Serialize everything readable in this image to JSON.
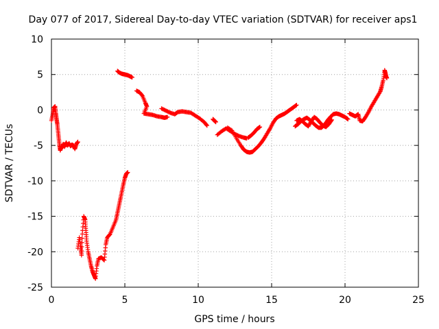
{
  "chart_data": {
    "type": "scatter",
    "title": "Day 077 of 2017, Sidereal Day-to-day VTEC variation (SDTVAR) for receiver aps1",
    "xlabel": "GPS time / hours",
    "ylabel": "SDTVAR / TECUs",
    "xlim": [
      0,
      25
    ],
    "ylim": [
      -25,
      10
    ],
    "xticks": [
      0,
      5,
      10,
      15,
      20,
      25
    ],
    "xtick_labels": [
      "0",
      "5",
      "10",
      "15",
      "20",
      "25"
    ],
    "yticks": [
      -25,
      -20,
      -15,
      -10,
      -5,
      0,
      5,
      10
    ],
    "ytick_labels": [
      "-25",
      "-20",
      "-15",
      "-10",
      "-5",
      "0",
      "5",
      "10"
    ],
    "grid": true,
    "marker": "+",
    "color": "#ff0000",
    "segments": [
      {
        "name": "early-drop",
        "points": [
          [
            0.0,
            -1.5
          ],
          [
            0.1,
            -0.5
          ],
          [
            0.15,
            0.3
          ],
          [
            0.25,
            0.5
          ],
          [
            0.3,
            -0.5
          ],
          [
            0.35,
            -1.3
          ],
          [
            0.4,
            -2.0
          ],
          [
            0.45,
            -3.0
          ],
          [
            0.5,
            -4.0
          ],
          [
            0.55,
            -5.0
          ],
          [
            0.6,
            -5.7
          ]
        ]
      },
      {
        "name": "early-flat",
        "points": [
          [
            0.6,
            -5.6
          ],
          [
            0.7,
            -5.3
          ],
          [
            0.8,
            -4.8
          ],
          [
            0.9,
            -5.2
          ],
          [
            1.0,
            -4.6
          ],
          [
            1.1,
            -5.0
          ],
          [
            1.2,
            -4.7
          ],
          [
            1.3,
            -5.1
          ],
          [
            1.4,
            -4.9
          ],
          [
            1.5,
            -5.0
          ],
          [
            1.6,
            -5.5
          ],
          [
            1.7,
            -4.8
          ],
          [
            1.8,
            -4.5
          ]
        ]
      },
      {
        "name": "deep-dip",
        "points": [
          [
            1.8,
            -19.5
          ],
          [
            1.9,
            -18.0
          ],
          [
            2.0,
            -19.5
          ],
          [
            2.05,
            -20.5
          ],
          [
            2.1,
            -17.5
          ],
          [
            2.2,
            -15.0
          ],
          [
            2.3,
            -15.5
          ],
          [
            2.35,
            -17.0
          ],
          [
            2.4,
            -18.5
          ],
          [
            2.5,
            -20.0
          ],
          [
            2.6,
            -21.0
          ],
          [
            2.7,
            -22.0
          ],
          [
            2.8,
            -22.8
          ],
          [
            2.9,
            -23.3
          ],
          [
            3.0,
            -23.8
          ],
          [
            3.1,
            -22.0
          ],
          [
            3.2,
            -21.0
          ],
          [
            3.4,
            -20.8
          ],
          [
            3.6,
            -21.2
          ],
          [
            3.7,
            -19.0
          ],
          [
            3.8,
            -18.0
          ],
          [
            4.0,
            -17.5
          ],
          [
            4.2,
            -16.5
          ],
          [
            4.4,
            -15.5
          ],
          [
            4.5,
            -14.5
          ],
          [
            4.6,
            -13.5
          ],
          [
            4.7,
            -12.5
          ],
          [
            4.8,
            -11.5
          ],
          [
            4.9,
            -10.5
          ],
          [
            5.0,
            -9.6
          ],
          [
            5.1,
            -9.0
          ],
          [
            5.2,
            -8.8
          ]
        ]
      },
      {
        "name": "high-segment",
        "points": [
          [
            4.5,
            5.5
          ],
          [
            4.6,
            5.3
          ],
          [
            4.8,
            5.1
          ],
          [
            5.0,
            5.0
          ],
          [
            5.2,
            4.9
          ],
          [
            5.4,
            4.7
          ],
          [
            5.5,
            4.6
          ]
        ]
      },
      {
        "name": "morning-decline",
        "points": [
          [
            5.8,
            2.7
          ],
          [
            6.0,
            2.5
          ],
          [
            6.2,
            2.0
          ],
          [
            6.4,
            1.0
          ],
          [
            6.5,
            0.5
          ],
          [
            6.3,
            -0.5
          ],
          [
            6.6,
            -0.6
          ],
          [
            6.9,
            -0.7
          ],
          [
            7.2,
            -0.9
          ],
          [
            7.5,
            -1.0
          ],
          [
            7.7,
            -1.1
          ],
          [
            7.9,
            -1.0
          ]
        ]
      },
      {
        "name": "midday-plateau",
        "points": [
          [
            7.5,
            0.2
          ],
          [
            7.8,
            -0.1
          ],
          [
            8.1,
            -0.4
          ],
          [
            8.4,
            -0.6
          ],
          [
            8.6,
            -0.3
          ],
          [
            8.9,
            -0.2
          ],
          [
            9.2,
            -0.3
          ],
          [
            9.5,
            -0.4
          ],
          [
            9.8,
            -0.8
          ],
          [
            10.1,
            -1.2
          ],
          [
            10.4,
            -1.7
          ],
          [
            10.6,
            -2.2
          ]
        ]
      },
      {
        "name": "small-piece",
        "points": [
          [
            11.0,
            -1.3
          ],
          [
            11.1,
            -1.5
          ],
          [
            11.2,
            -1.7
          ]
        ]
      },
      {
        "name": "afternoon-band-a",
        "points": [
          [
            11.3,
            -3.5
          ],
          [
            11.6,
            -3.0
          ],
          [
            11.9,
            -2.6
          ],
          [
            12.2,
            -3.0
          ],
          [
            12.5,
            -3.4
          ],
          [
            12.8,
            -3.7
          ],
          [
            13.1,
            -3.9
          ],
          [
            13.3,
            -4.0
          ]
        ]
      },
      {
        "name": "afternoon-band-b",
        "points": [
          [
            12.0,
            -2.5
          ],
          [
            12.3,
            -2.9
          ],
          [
            12.6,
            -4.0
          ],
          [
            12.9,
            -5.0
          ],
          [
            13.1,
            -5.6
          ],
          [
            13.3,
            -5.9
          ],
          [
            13.5,
            -6.0
          ],
          [
            13.7,
            -5.9
          ],
          [
            13.9,
            -5.5
          ],
          [
            14.1,
            -5.1
          ],
          [
            14.3,
            -4.6
          ],
          [
            14.5,
            -4.0
          ],
          [
            14.7,
            -3.3
          ],
          [
            14.9,
            -2.6
          ],
          [
            15.1,
            -1.8
          ],
          [
            15.3,
            -1.2
          ],
          [
            15.5,
            -0.9
          ],
          [
            15.7,
            -0.7
          ],
          [
            15.9,
            -0.5
          ],
          [
            16.1,
            -0.2
          ],
          [
            16.3,
            0.1
          ],
          [
            16.5,
            0.4
          ],
          [
            16.7,
            0.7
          ]
        ]
      },
      {
        "name": "afternoon-band-c",
        "points": [
          [
            13.4,
            -3.9
          ],
          [
            13.6,
            -3.6
          ],
          [
            13.8,
            -3.2
          ],
          [
            14.0,
            -2.7
          ],
          [
            14.2,
            -2.4
          ]
        ]
      },
      {
        "name": "evening-wave-a",
        "points": [
          [
            16.6,
            -2.3
          ],
          [
            16.8,
            -2.0
          ],
          [
            17.0,
            -1.6
          ],
          [
            17.2,
            -1.3
          ],
          [
            17.4,
            -1.1
          ],
          [
            17.6,
            -1.4
          ],
          [
            17.8,
            -1.8
          ],
          [
            18.0,
            -2.2
          ],
          [
            18.2,
            -2.5
          ],
          [
            18.4,
            -2.5
          ],
          [
            18.6,
            -2.1
          ],
          [
            18.8,
            -1.5
          ],
          [
            19.0,
            -1.0
          ],
          [
            19.2,
            -0.6
          ],
          [
            19.4,
            -0.5
          ],
          [
            19.6,
            -0.6
          ],
          [
            19.8,
            -0.8
          ],
          [
            20.0,
            -1.0
          ],
          [
            20.2,
            -1.3
          ]
        ]
      },
      {
        "name": "evening-wave-b",
        "points": [
          [
            16.7,
            -1.5
          ],
          [
            16.9,
            -1.3
          ],
          [
            17.1,
            -1.6
          ],
          [
            17.3,
            -2.0
          ],
          [
            17.5,
            -2.3
          ],
          [
            17.7,
            -1.6
          ],
          [
            17.9,
            -1.0
          ],
          [
            18.1,
            -1.3
          ],
          [
            18.3,
            -1.8
          ],
          [
            18.5,
            -2.2
          ],
          [
            18.7,
            -2.4
          ],
          [
            18.9,
            -2.0
          ],
          [
            19.1,
            -1.4
          ]
        ]
      },
      {
        "name": "late-rise",
        "points": [
          [
            20.3,
            -0.5
          ],
          [
            20.5,
            -0.7
          ],
          [
            20.7,
            -0.9
          ],
          [
            20.9,
            -0.6
          ],
          [
            21.0,
            -1.5
          ],
          [
            21.2,
            -1.6
          ],
          [
            21.4,
            -1.0
          ],
          [
            21.6,
            -0.3
          ],
          [
            21.8,
            0.5
          ],
          [
            22.0,
            1.2
          ],
          [
            22.2,
            1.9
          ],
          [
            22.4,
            2.6
          ],
          [
            22.5,
            3.3
          ],
          [
            22.6,
            4.2
          ],
          [
            22.7,
            5.6
          ],
          [
            22.75,
            5.2
          ],
          [
            22.8,
            4.7
          ],
          [
            22.85,
            4.5
          ]
        ]
      }
    ]
  }
}
